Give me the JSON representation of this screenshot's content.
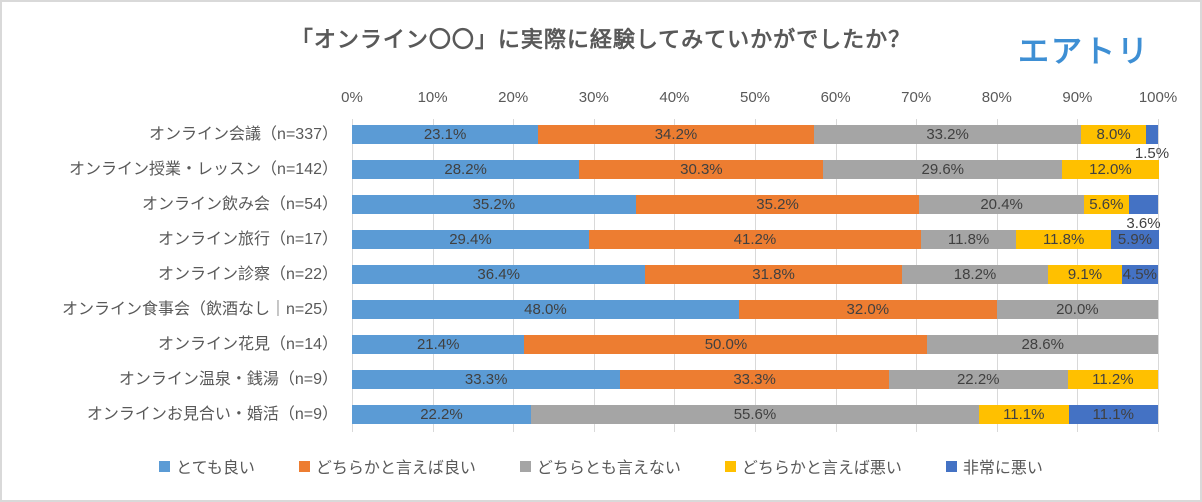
{
  "title": "「オンライン〇〇」に実際に経験してみていかがでしたか？",
  "logo_text": "エアトリ",
  "colors": {
    "very_good": "#5B9BD5",
    "somewhat_good": "#ED7D31",
    "neither": "#A5A5A5",
    "somewhat_bad": "#FFC000",
    "very_bad": "#4472C4",
    "title_text": "#595959",
    "axis_text": "#595959",
    "value_text": "#404040",
    "gridline": "#D9D9D9",
    "logo_blue": "#3E8FD4"
  },
  "chart_data": {
    "type": "bar",
    "stacked": true,
    "orientation": "horizontal",
    "title": "「オンライン〇〇」に実際に経験してみていかがでしたか？",
    "categories": [
      "オンライン会議（n=337）",
      "オンライン授業・レッスン（n=142）",
      "オンライン飲み会（n=54）",
      "オンライン旅行（n=17）",
      "オンライン診察（n=22）",
      "オンライン食事会（飲酒なし｜n=25）",
      "オンライン花見（n=14）",
      "オンライン温泉・銭湯（n=9）",
      "オンラインお見合い・婚活（n=9）"
    ],
    "series": [
      {
        "name": "とても良い",
        "color": "#5B9BD5",
        "values": [
          23.1,
          28.2,
          35.2,
          29.4,
          36.4,
          48.0,
          21.4,
          33.3,
          22.2
        ]
      },
      {
        "name": "どちらかと言えば良い",
        "color": "#ED7D31",
        "values": [
          34.2,
          30.3,
          35.2,
          41.2,
          31.8,
          32.0,
          50.0,
          33.3,
          0
        ]
      },
      {
        "name": "どちらとも言えない",
        "color": "#A5A5A5",
        "values": [
          33.2,
          29.6,
          20.4,
          11.8,
          18.2,
          20.0,
          28.6,
          22.2,
          55.6
        ]
      },
      {
        "name": "どちらかと言えば悪い",
        "color": "#FFC000",
        "values": [
          8.0,
          12.0,
          5.6,
          11.8,
          9.1,
          0,
          0,
          11.2,
          11.1
        ]
      },
      {
        "name": "非常に悪い",
        "color": "#4472C4",
        "values": [
          1.5,
          0,
          3.6,
          5.9,
          4.5,
          0,
          0,
          0,
          11.1
        ]
      }
    ],
    "x_ticks": [
      "0%",
      "10%",
      "20%",
      "30%",
      "40%",
      "50%",
      "60%",
      "70%",
      "80%",
      "90%",
      "100%"
    ],
    "xlim": [
      0,
      100
    ],
    "value_suffix": "%",
    "grid": true,
    "legend_position": "bottom",
    "outside_labels": [
      {
        "row": 0,
        "series": 4,
        "text": "1.5%"
      },
      {
        "row": 2,
        "series": 4,
        "text": "3.6%"
      }
    ]
  }
}
